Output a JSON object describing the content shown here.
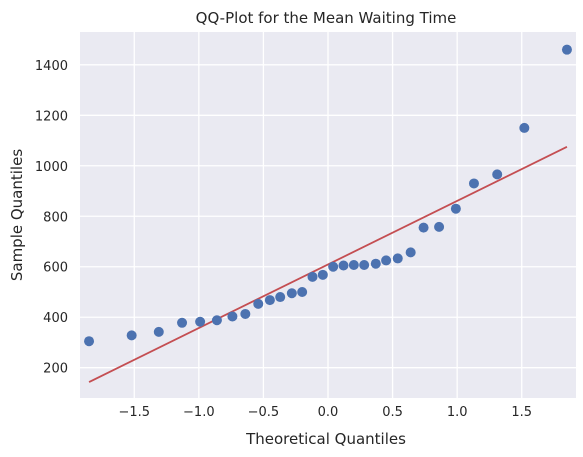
{
  "chart_data": {
    "type": "scatter",
    "title": "QQ-Plot for the Mean Waiting Time",
    "xlabel": "Theoretical Quantiles",
    "ylabel": "Sample Quantiles",
    "xlim": [
      -1.92,
      1.92
    ],
    "ylim": [
      80,
      1530
    ],
    "xticks": [
      -1.5,
      -1.0,
      -0.5,
      0.0,
      0.5,
      1.0,
      1.5
    ],
    "xtick_labels": [
      "−1.5",
      "−1.0",
      "−0.5",
      "0.0",
      "0.5",
      "1.0",
      "1.5"
    ],
    "yticks": [
      200,
      400,
      600,
      800,
      1000,
      1200,
      1400
    ],
    "ytick_labels": [
      "200",
      "400",
      "600",
      "800",
      "1000",
      "1200",
      "1400"
    ],
    "grid": true,
    "colors": {
      "background": "#eaeaf2",
      "grid": "#ffffff",
      "points": "#4c72b0",
      "line": "#c44e52"
    },
    "points": {
      "x": [
        -1.85,
        -1.52,
        -1.31,
        -1.13,
        -0.99,
        -0.86,
        -0.74,
        -0.64,
        -0.54,
        -0.45,
        -0.37,
        -0.28,
        -0.2,
        -0.12,
        -0.04,
        0.04,
        0.12,
        0.2,
        0.28,
        0.37,
        0.45,
        0.54,
        0.64,
        0.74,
        0.86,
        0.99,
        1.13,
        1.31,
        1.52,
        1.85
      ],
      "y": [
        305,
        328,
        342,
        378,
        382,
        388,
        403,
        413,
        453,
        468,
        480,
        495,
        500,
        560,
        568,
        600,
        605,
        607,
        607,
        612,
        625,
        633,
        657,
        755,
        758,
        830,
        930,
        966,
        1150,
        1460
      ]
    },
    "reference_line": {
      "x": [
        -1.85,
        1.85
      ],
      "y": [
        143,
        1075
      ]
    }
  }
}
